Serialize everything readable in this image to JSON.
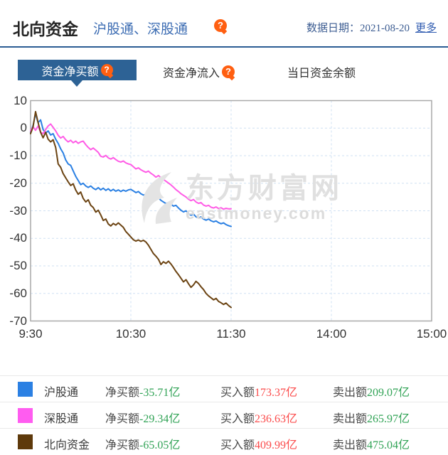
{
  "header": {
    "title": "北向资金",
    "subtitle": "沪股通、深股通",
    "help_icon": "question-bubble",
    "date_label": "数据日期：",
    "date_value": "2021-08-20",
    "more_label": "更多"
  },
  "tabs": [
    {
      "label": "资金净买额",
      "active": true,
      "has_help": true
    },
    {
      "label": "资金净流入",
      "active": false,
      "has_help": true
    },
    {
      "label": "当日资金余额",
      "active": false,
      "has_help": false
    }
  ],
  "colors": {
    "accent_blue": "#2d6295",
    "line_hgt": "#2b80e3",
    "line_sgt": "#ff5ce6",
    "line_bx": "#6b4312",
    "value_red": "#fb4c4c",
    "value_green": "#31a356",
    "grid": "#cfe0f3",
    "plot_border": "#a9a9a9",
    "help_orange": "#ff5f11"
  },
  "chart_data": {
    "type": "line",
    "title": "",
    "xlabel": "",
    "ylabel": "",
    "unit": "亿",
    "x_axis": {
      "ticks": [
        "9:30",
        "10:30",
        "11:30",
        "14:00",
        "15:00"
      ],
      "tick_minutes": [
        0,
        60,
        120,
        180,
        240
      ],
      "total_minutes": 240
    },
    "y_axis": {
      "min": -70,
      "max": 10,
      "ticks": [
        10,
        0,
        -10,
        -20,
        -30,
        -40,
        -50,
        -60,
        -70
      ]
    },
    "grid": "dashed",
    "watermark": {
      "text": "东方财富网",
      "subtext": "eastmoney.com"
    },
    "series": [
      {
        "name": "沪股通",
        "color": "#2b80e3",
        "points": [
          [
            0,
            -1.5
          ],
          [
            1.5,
            1
          ],
          [
            3,
            5.2
          ],
          [
            4.5,
            2
          ],
          [
            6,
            3
          ],
          [
            7.5,
            -0.5
          ],
          [
            9,
            -1.8
          ],
          [
            10.5,
            -1
          ],
          [
            12,
            -2.5
          ],
          [
            13.5,
            -2
          ],
          [
            15,
            -4
          ],
          [
            16.5,
            -5.5
          ],
          [
            18,
            -7.5
          ],
          [
            19.5,
            -9
          ],
          [
            21,
            -11.5
          ],
          [
            22.5,
            -13
          ],
          [
            24,
            -13.5
          ],
          [
            25.5,
            -15.5
          ],
          [
            27,
            -17.5
          ],
          [
            28.5,
            -19
          ],
          [
            30,
            -20.5
          ],
          [
            31.5,
            -20
          ],
          [
            33,
            -21
          ],
          [
            34.5,
            -21.5
          ],
          [
            36,
            -21
          ],
          [
            37.5,
            -21.8
          ],
          [
            39,
            -22.3
          ],
          [
            40.5,
            -21.6
          ],
          [
            42,
            -22.4
          ],
          [
            43.5,
            -21.8
          ],
          [
            45,
            -22.6
          ],
          [
            46.5,
            -22
          ],
          [
            48,
            -22.8
          ],
          [
            49.5,
            -22.2
          ],
          [
            51,
            -22.9
          ],
          [
            52.5,
            -22.4
          ],
          [
            54,
            -23
          ],
          [
            55.5,
            -22.5
          ],
          [
            57,
            -22.9
          ],
          [
            58.5,
            -22.4
          ],
          [
            60,
            -22.2
          ],
          [
            61.5,
            -22.8
          ],
          [
            63,
            -23.4
          ],
          [
            64.5,
            -23
          ],
          [
            66,
            -23.8
          ],
          [
            67.5,
            -24.3
          ],
          [
            69,
            -24
          ],
          [
            70.5,
            -24.8
          ],
          [
            72,
            -25.3
          ],
          [
            73.5,
            -25
          ],
          [
            75,
            -25.6
          ],
          [
            76.5,
            -25.2
          ],
          [
            78,
            -26.2
          ],
          [
            79.5,
            -26.8
          ],
          [
            81,
            -27.4
          ],
          [
            82.5,
            -27
          ],
          [
            84,
            -27.6
          ],
          [
            85.5,
            -28.3
          ],
          [
            87,
            -28
          ],
          [
            88.5,
            -29
          ],
          [
            90,
            -29.8
          ],
          [
            91.5,
            -30.4
          ],
          [
            93,
            -30
          ],
          [
            94.5,
            -31
          ],
          [
            96,
            -31.6
          ],
          [
            97.5,
            -31.2
          ],
          [
            99,
            -32.2
          ],
          [
            100.5,
            -32.6
          ],
          [
            102,
            -32.2
          ],
          [
            103.5,
            -33
          ],
          [
            105,
            -33.4
          ],
          [
            106.5,
            -33
          ],
          [
            108,
            -33.6
          ],
          [
            109.5,
            -34
          ],
          [
            111,
            -33.7
          ],
          [
            112.5,
            -34.3
          ],
          [
            114,
            -34.7
          ],
          [
            115.5,
            -34.4
          ],
          [
            117,
            -35
          ],
          [
            118.5,
            -35.4
          ],
          [
            120,
            -35.7
          ]
        ]
      },
      {
        "name": "深股通",
        "color": "#ff5ce6",
        "points": [
          [
            0,
            -1
          ],
          [
            1.5,
            0.5
          ],
          [
            3,
            -0.8
          ],
          [
            4.5,
            0.8
          ],
          [
            6,
            -1.5
          ],
          [
            7.5,
            -2
          ],
          [
            9,
            -0.5
          ],
          [
            10.5,
            0.8
          ],
          [
            12,
            1.5
          ],
          [
            13.5,
            0.3
          ],
          [
            15,
            -1
          ],
          [
            16.5,
            -2.6
          ],
          [
            18,
            -3.6
          ],
          [
            19.5,
            -3
          ],
          [
            21,
            -4.2
          ],
          [
            22.5,
            -5
          ],
          [
            24,
            -4.4
          ],
          [
            25.5,
            -5.3
          ],
          [
            27,
            -4.7
          ],
          [
            28.5,
            -5.5
          ],
          [
            30,
            -5
          ],
          [
            31.5,
            -4.7
          ],
          [
            33,
            -6
          ],
          [
            34.5,
            -7
          ],
          [
            36,
            -7.8
          ],
          [
            37.5,
            -7.2
          ],
          [
            39,
            -8
          ],
          [
            40.5,
            -8.8
          ],
          [
            42,
            -10.2
          ],
          [
            43.5,
            -10.5
          ],
          [
            45,
            -9.9
          ],
          [
            46.5,
            -10.8
          ],
          [
            48,
            -11.2
          ],
          [
            49.5,
            -10.7
          ],
          [
            51,
            -11.4
          ],
          [
            52.5,
            -12
          ],
          [
            54,
            -12.3
          ],
          [
            55.5,
            -11.9
          ],
          [
            57,
            -12.6
          ],
          [
            58.5,
            -13
          ],
          [
            60,
            -13.2
          ],
          [
            61.5,
            -14
          ],
          [
            63,
            -14.8
          ],
          [
            64.5,
            -14.4
          ],
          [
            66,
            -15.1
          ],
          [
            67.5,
            -15.6
          ],
          [
            69,
            -16
          ],
          [
            70.5,
            -15.6
          ],
          [
            72,
            -16.4
          ],
          [
            73.5,
            -17
          ],
          [
            75,
            -17.8
          ],
          [
            76.5,
            -17.2
          ],
          [
            78,
            -18
          ],
          [
            79.5,
            -18.6
          ],
          [
            81,
            -19.3
          ],
          [
            82.5,
            -19.9
          ],
          [
            84,
            -20.6
          ],
          [
            85.5,
            -21.4
          ],
          [
            87,
            -22.3
          ],
          [
            88.5,
            -23
          ],
          [
            90,
            -23.8
          ],
          [
            91.5,
            -24.4
          ],
          [
            93,
            -25
          ],
          [
            94.5,
            -25.8
          ],
          [
            96,
            -26.3
          ],
          [
            97.5,
            -25.9
          ],
          [
            99,
            -26.8
          ],
          [
            100.5,
            -27.3
          ],
          [
            102,
            -27
          ],
          [
            103.5,
            -27.9
          ],
          [
            105,
            -28.3
          ],
          [
            106.5,
            -28
          ],
          [
            108,
            -28.7
          ],
          [
            109.5,
            -29
          ],
          [
            111,
            -28.6
          ],
          [
            112.5,
            -29.2
          ],
          [
            114,
            -28.9
          ],
          [
            115.5,
            -29.4
          ],
          [
            117,
            -29.1
          ],
          [
            118.5,
            -29.3
          ],
          [
            120,
            -29.3
          ]
        ]
      },
      {
        "name": "北向资金",
        "color": "#6b4312",
        "points": [
          [
            0,
            -2
          ],
          [
            1.5,
            0.5
          ],
          [
            3,
            6
          ],
          [
            4.5,
            2
          ],
          [
            6,
            -1.5
          ],
          [
            7.5,
            -3.5
          ],
          [
            9,
            -1.5
          ],
          [
            10.5,
            -4
          ],
          [
            12,
            -5
          ],
          [
            13.5,
            -4.2
          ],
          [
            15,
            -7
          ],
          [
            16.5,
            -13
          ],
          [
            18,
            -14.2
          ],
          [
            19.5,
            -16.5
          ],
          [
            21,
            -18
          ],
          [
            22.5,
            -19.5
          ],
          [
            24,
            -20.8
          ],
          [
            25.5,
            -20.2
          ],
          [
            27,
            -22.5
          ],
          [
            28.5,
            -24
          ],
          [
            30,
            -23.2
          ],
          [
            31.5,
            -25.5
          ],
          [
            33,
            -26.8
          ],
          [
            34.5,
            -26
          ],
          [
            36,
            -28
          ],
          [
            37.5,
            -28.8
          ],
          [
            39,
            -30.5
          ],
          [
            40.5,
            -29.8
          ],
          [
            42,
            -31.5
          ],
          [
            43.5,
            -33.5
          ],
          [
            45,
            -33
          ],
          [
            46.5,
            -34.8
          ],
          [
            48,
            -35.5
          ],
          [
            49.5,
            -34.6
          ],
          [
            51,
            -35.2
          ],
          [
            52.5,
            -34.4
          ],
          [
            54,
            -35.2
          ],
          [
            55.5,
            -36
          ],
          [
            57,
            -37.5
          ],
          [
            58.5,
            -38.5
          ],
          [
            60,
            -39.5
          ],
          [
            61.5,
            -40.5
          ],
          [
            63,
            -41
          ],
          [
            64.5,
            -40.6
          ],
          [
            66,
            -41.1
          ],
          [
            67.5,
            -40.7
          ],
          [
            69,
            -41.3
          ],
          [
            70.5,
            -42.5
          ],
          [
            72,
            -44
          ],
          [
            73.5,
            -45.5
          ],
          [
            75,
            -46.5
          ],
          [
            76.5,
            -47.6
          ],
          [
            78,
            -49.5
          ],
          [
            79.5,
            -48.5
          ],
          [
            81,
            -49.1
          ],
          [
            82.5,
            -48.3
          ],
          [
            84,
            -49.3
          ],
          [
            85.5,
            -50.6
          ],
          [
            87,
            -52
          ],
          [
            88.5,
            -53.2
          ],
          [
            90,
            -54.5
          ],
          [
            91.5,
            -55.8
          ],
          [
            93,
            -55
          ],
          [
            94.5,
            -56.5
          ],
          [
            96,
            -57.8
          ],
          [
            97.5,
            -56.9
          ],
          [
            99,
            -55.6
          ],
          [
            100.5,
            -56.4
          ],
          [
            102,
            -57.6
          ],
          [
            103.5,
            -58.6
          ],
          [
            105,
            -60
          ],
          [
            106.5,
            -60.9
          ],
          [
            108,
            -61.6
          ],
          [
            109.5,
            -62.3
          ],
          [
            111,
            -61.8
          ],
          [
            112.5,
            -62.9
          ],
          [
            114,
            -63.4
          ],
          [
            115.5,
            -64
          ],
          [
            117,
            -63.5
          ],
          [
            118.5,
            -64.4
          ],
          [
            120,
            -65.1
          ]
        ]
      }
    ]
  },
  "legend": {
    "rows": [
      {
        "name": "沪股通",
        "swatch": "#2b80e3",
        "cells": [
          {
            "label": "净买额",
            "value": "-35.71亿",
            "color": "#31a356"
          },
          {
            "label": "买入额",
            "value": "173.37亿",
            "color": "#fb4c4c"
          },
          {
            "label": "卖出额",
            "value": "209.07亿",
            "color": "#31a356"
          }
        ]
      },
      {
        "name": "深股通",
        "swatch": "#ff5cf0",
        "cells": [
          {
            "label": "净买额",
            "value": "-29.34亿",
            "color": "#31a356"
          },
          {
            "label": "买入额",
            "value": "236.63亿",
            "color": "#fb4c4c"
          },
          {
            "label": "卖出额",
            "value": "265.97亿",
            "color": "#31a356"
          }
        ]
      },
      {
        "name": "北向资金",
        "swatch": "#5e390b",
        "cells": [
          {
            "label": "净买额",
            "value": "-65.05亿",
            "color": "#31a356"
          },
          {
            "label": "买入额",
            "value": "409.99亿",
            "color": "#fb4c4c"
          },
          {
            "label": "卖出额",
            "value": "475.04亿",
            "color": "#31a356"
          }
        ]
      }
    ]
  }
}
